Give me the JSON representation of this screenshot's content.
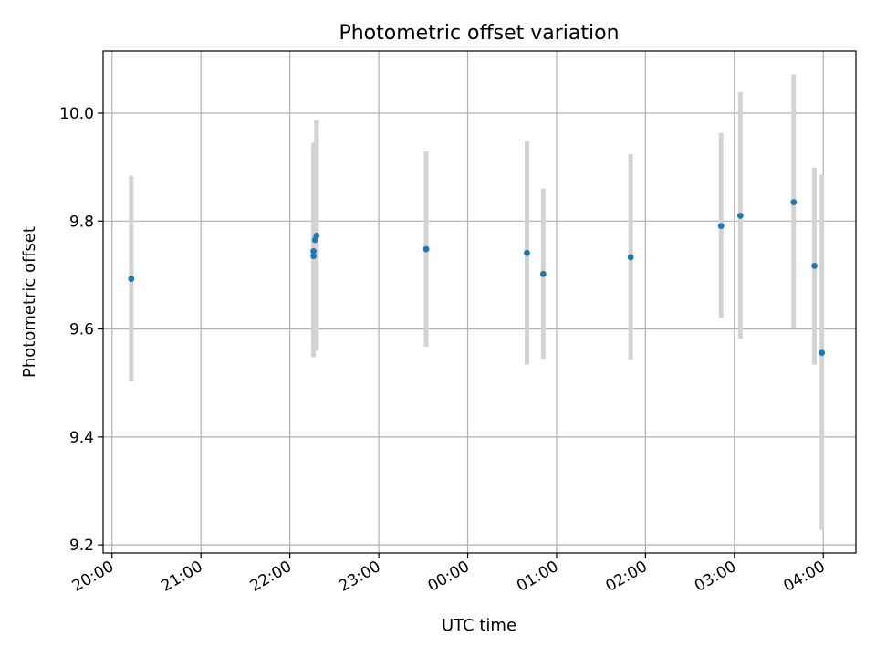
{
  "chart_data": {
    "type": "scatter",
    "title": "Photometric offset variation",
    "xlabel": "UTC time",
    "ylabel": "Photometric offset",
    "x_axis": {
      "kind": "time",
      "range": [
        "19:54",
        "04:22"
      ],
      "ticks": [
        "20:00",
        "21:00",
        "22:00",
        "23:00",
        "00:00",
        "01:00",
        "02:00",
        "03:00",
        "04:00"
      ]
    },
    "y_axis": {
      "range": [
        9.185,
        10.115
      ],
      "ticks": [
        "9.2",
        "9.4",
        "9.6",
        "9.8",
        "10.0"
      ]
    },
    "grid": true,
    "marker_color": "#1f77b4",
    "errorbar_color": "#d3d3d3",
    "series": [
      {
        "points": [
          {
            "x": "20:13",
            "y": 9.693,
            "ylow": 9.503,
            "yhigh": 9.884
          },
          {
            "x": "22:16",
            "y": 9.735,
            "ylow": 9.548,
            "yhigh": 9.93
          },
          {
            "x": "22:16",
            "y": 9.744,
            "ylow": 9.556,
            "yhigh": 9.944
          },
          {
            "x": "22:17",
            "y": 9.765,
            "ylow": 9.575,
            "yhigh": 9.946
          },
          {
            "x": "22:18",
            "y": 9.773,
            "ylow": 9.56,
            "yhigh": 9.987
          },
          {
            "x": "23:32",
            "y": 9.748,
            "ylow": 9.567,
            "yhigh": 9.929
          },
          {
            "x": "00:40",
            "y": 9.741,
            "ylow": 9.534,
            "yhigh": 9.948
          },
          {
            "x": "00:51",
            "y": 9.702,
            "ylow": 9.545,
            "yhigh": 9.86
          },
          {
            "x": "01:50",
            "y": 9.733,
            "ylow": 9.543,
            "yhigh": 9.924
          },
          {
            "x": "02:51",
            "y": 9.791,
            "ylow": 9.62,
            "yhigh": 9.963
          },
          {
            "x": "03:04",
            "y": 9.81,
            "ylow": 9.582,
            "yhigh": 10.039
          },
          {
            "x": "03:40",
            "y": 9.835,
            "ylow": 9.601,
            "yhigh": 10.072
          },
          {
            "x": "03:54",
            "y": 9.717,
            "ylow": 9.534,
            "yhigh": 9.899
          },
          {
            "x": "03:59",
            "y": 9.556,
            "ylow": 9.228,
            "yhigh": 9.886
          }
        ]
      }
    ]
  }
}
